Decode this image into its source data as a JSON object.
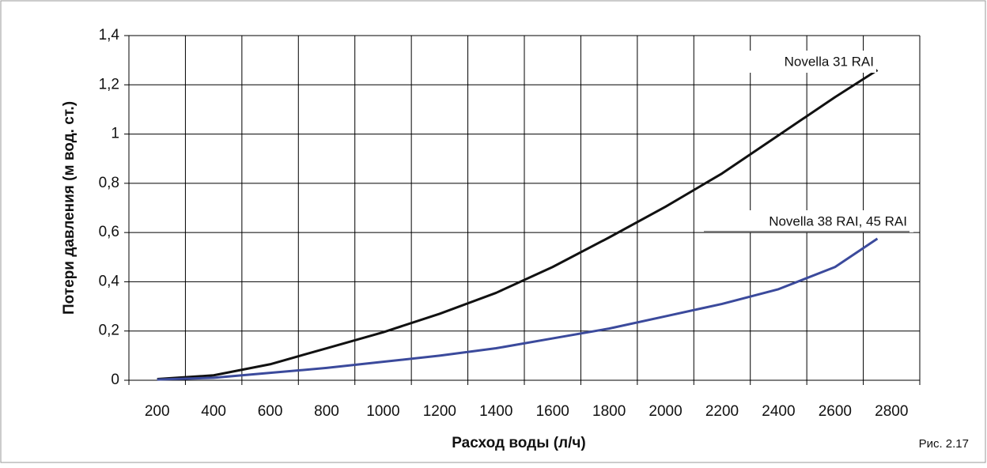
{
  "chart_data": {
    "type": "line",
    "xlabel": "Расход воды (л/ч)",
    "ylabel": "Потери давления (м вод. ст.)",
    "caption": "Рис. 2.17",
    "x": [
      200,
      400,
      600,
      800,
      1000,
      1200,
      1400,
      1600,
      1800,
      2000,
      2200,
      2400,
      2600,
      2750
    ],
    "series": [
      {
        "name": "Novella 31 RAI",
        "color": "#111111",
        "values": [
          0.005,
          0.02,
          0.065,
          0.13,
          0.195,
          0.27,
          0.355,
          0.46,
          0.58,
          0.705,
          0.84,
          0.995,
          1.15,
          1.26
        ]
      },
      {
        "name": "Novella 38 RAI, 45 RAI",
        "color": "#3b4a9c",
        "values": [
          0.003,
          0.01,
          0.03,
          0.05,
          0.075,
          0.1,
          0.13,
          0.17,
          0.21,
          0.26,
          0.31,
          0.37,
          0.46,
          0.575
        ]
      }
    ],
    "xlim": [
      100,
      2900
    ],
    "xticks": [
      200,
      400,
      600,
      800,
      1000,
      1200,
      1400,
      1600,
      1800,
      2000,
      2200,
      2400,
      2600,
      2800
    ],
    "ylim": [
      0,
      1.4
    ],
    "yticks": [
      0,
      {
        "value": 0.2,
        "label": "0,2"
      },
      {
        "value": 0.4,
        "label": "0,4"
      },
      {
        "value": 0.6,
        "label": "0,6"
      },
      {
        "value": 0.8,
        "label": "0,8"
      },
      1,
      {
        "value": 1.2,
        "label": "1,2"
      },
      {
        "value": 1.4,
        "label": "1,4"
      }
    ],
    "grid": true
  }
}
